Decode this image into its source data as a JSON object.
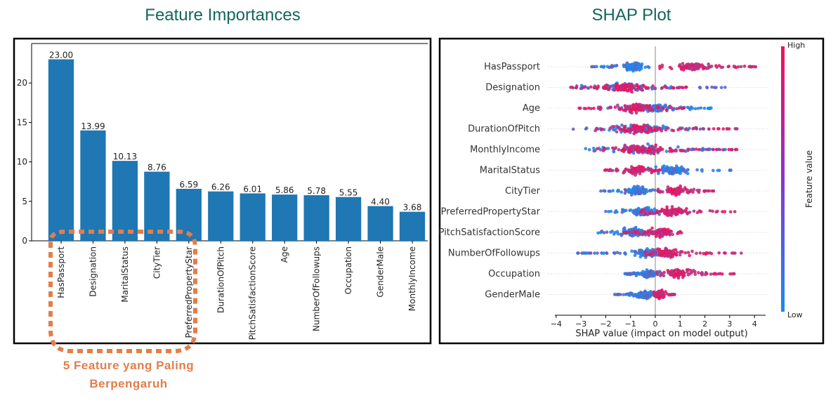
{
  "left_panel": {
    "title": "Feature Importances",
    "annotation": [
      "5 Feature yang Paling",
      "Berpengaruh"
    ]
  },
  "right_panel": {
    "title": "SHAP Plot"
  },
  "colors": {
    "title": "#14655e",
    "bar": "#1f77b4",
    "highlight": "#e37d4a",
    "shap_low": "#1a8bf0",
    "shap_high": "#f5105a"
  },
  "chart_data": [
    {
      "type": "bar",
      "categories": [
        "HasPassport",
        "Designation",
        "MaritalStatus",
        "CityTier",
        "PreferredPropertyStar",
        "DurationOfPitch",
        "PitchSatisfactionScore",
        "Age",
        "NumberOfFollowups",
        "Occupation",
        "GenderMale",
        "MonthlyIncome"
      ],
      "values": [
        23.0,
        13.99,
        10.13,
        8.76,
        6.59,
        6.26,
        6.01,
        5.86,
        5.78,
        5.55,
        4.4,
        3.68
      ],
      "value_labels": [
        "23.00",
        "13.99",
        "10.13",
        "8.76",
        "6.59",
        "6.26",
        "6.01",
        "5.86",
        "5.78",
        "5.55",
        "4.40",
        "3.68"
      ],
      "ylim": [
        0,
        25
      ],
      "yticks": [
        "0",
        "5",
        "10",
        "15",
        "20"
      ],
      "highlighted": [
        "HasPassport",
        "Designation",
        "MaritalStatus",
        "CityTier",
        "PreferredPropertyStar"
      ]
    },
    {
      "type": "scatter",
      "features": [
        "HasPassport",
        "Designation",
        "Age",
        "DurationOfPitch",
        "MonthlyIncome",
        "MaritalStatus",
        "CityTier",
        "PreferredPropertyStar",
        "PitchSatisfactionScore",
        "NumberOfFollowups",
        "Occupation",
        "GenderMale"
      ],
      "xlim": [
        -4.2,
        4.6
      ],
      "xticks": [
        -4,
        -3,
        -2,
        -1,
        0,
        1,
        2,
        3,
        4
      ],
      "xtick_labels": [
        "−4",
        "−3",
        "−2",
        "−1",
        "0",
        "1",
        "2",
        "3",
        "4"
      ],
      "xlabel": "SHAP value (impact on model output)",
      "colorbar": {
        "label": "Feature value",
        "high": "High",
        "low": "Low"
      },
      "series": [
        {
          "feature": "HasPassport",
          "low_range": [
            -2.6,
            -0.1
          ],
          "low_center": -0.9,
          "high_range": [
            0.1,
            4.1
          ],
          "high_center": 1.5
        },
        {
          "feature": "Designation",
          "low_range": [
            -3.4,
            3.1
          ],
          "low_center": -1.3,
          "high_range": [
            -3.5,
            1.5
          ],
          "high_center": -1.3
        },
        {
          "feature": "Age",
          "low_range": [
            -2.0,
            2.3
          ],
          "low_center": 0.0,
          "high_range": [
            -3.1,
            1.2
          ],
          "high_center": -0.8
        },
        {
          "feature": "DurationOfPitch",
          "low_range": [
            -3.6,
            2.2
          ],
          "low_center": -0.7,
          "high_range": [
            -2.5,
            3.3
          ],
          "high_center": -0.7
        },
        {
          "feature": "MonthlyIncome",
          "low_range": [
            -2.9,
            3.2
          ],
          "low_center": -0.6,
          "high_range": [
            -2.5,
            3.3
          ],
          "high_center": -0.6
        },
        {
          "feature": "MaritalStatus",
          "low_range": [
            -0.3,
            3.1
          ],
          "low_center": 0.7,
          "high_range": [
            -2.1,
            0.2
          ],
          "high_center": -0.8
        },
        {
          "feature": "CityTier",
          "low_range": [
            -2.2,
            0.0
          ],
          "low_center": -0.8,
          "high_range": [
            0.0,
            2.5
          ],
          "high_center": 0.8
        },
        {
          "feature": "PreferredPropertyStar",
          "low_range": [
            -2.2,
            1.2
          ],
          "low_center": -0.5,
          "high_range": [
            -0.6,
            3.4
          ],
          "high_center": 0.7
        },
        {
          "feature": "PitchSatisfactionScore",
          "low_range": [
            -2.4,
            0.6
          ],
          "low_center": -0.9,
          "high_range": [
            -1.3,
            1.2
          ],
          "high_center": 0.2
        },
        {
          "feature": "NumberOfFollowups",
          "low_range": [
            -3.2,
            0.2
          ],
          "low_center": -0.3,
          "high_range": [
            -0.4,
            3.5
          ],
          "high_center": 0.4
        },
        {
          "feature": "Occupation",
          "low_range": [
            -1.3,
            0.3
          ],
          "low_center": -0.3,
          "high_range": [
            0.0,
            3.2
          ],
          "high_center": 0.9
        },
        {
          "feature": "GenderMale",
          "low_range": [
            -1.7,
            0.1
          ],
          "low_center": -0.4,
          "high_range": [
            -0.1,
            0.8
          ],
          "high_center": 0.2
        }
      ]
    }
  ]
}
